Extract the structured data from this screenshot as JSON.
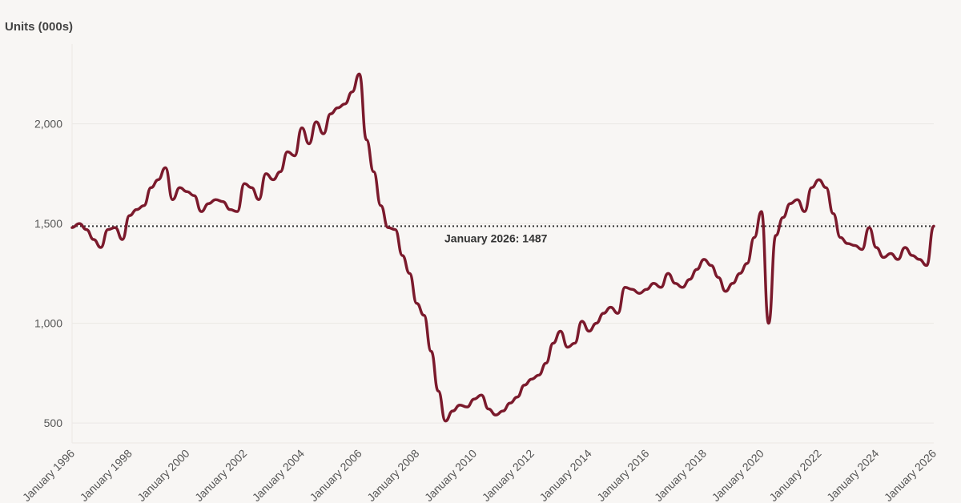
{
  "chart_data": {
    "type": "line",
    "title": "",
    "ylabel": "Units (000s)",
    "xlabel": "",
    "ylim": [
      400,
      2400
    ],
    "yticks": [
      500,
      1000,
      1500,
      2000
    ],
    "ytick_labels": [
      "500",
      "1,000",
      "1,500",
      "2,000"
    ],
    "xlim": [
      "1996-01",
      "2026-01"
    ],
    "xtick_labels": [
      "January 1996",
      "January 1998",
      "January 2000",
      "January 2002",
      "January 2004",
      "January 2006",
      "January 2008",
      "January 2010",
      "January 2012",
      "January 2014",
      "January 2016",
      "January 2018",
      "January 2020",
      "January 2022",
      "January 2024",
      "January 2026"
    ],
    "grid": "horizontal",
    "line_color": "#7b1a2c",
    "reference_line": {
      "value": 1487,
      "style": "dotted",
      "label": "January 2026: 1487"
    },
    "series": [
      {
        "frequency": "quarterly",
        "start": "1996-01",
        "values": [
          1480,
          1500,
          1470,
          1420,
          1380,
          1470,
          1480,
          1420,
          1540,
          1570,
          1590,
          1680,
          1720,
          1780,
          1620,
          1680,
          1660,
          1640,
          1560,
          1600,
          1620,
          1610,
          1570,
          1560,
          1700,
          1680,
          1620,
          1750,
          1720,
          1760,
          1860,
          1840,
          1980,
          1900,
          2010,
          1950,
          2050,
          2080,
          2100,
          2160,
          2250,
          1920,
          1760,
          1590,
          1480,
          1470,
          1340,
          1250,
          1100,
          1040,
          860,
          660,
          510,
          560,
          590,
          580,
          620,
          640,
          570,
          540,
          560,
          600,
          630,
          690,
          720,
          740,
          800,
          900,
          960,
          880,
          900,
          1010,
          960,
          1000,
          1050,
          1080,
          1050,
          1180,
          1170,
          1150,
          1170,
          1200,
          1180,
          1250,
          1200,
          1180,
          1220,
          1270,
          1320,
          1290,
          1230,
          1160,
          1200,
          1250,
          1300,
          1430,
          1560,
          1000,
          1440,
          1530,
          1600,
          1620,
          1560,
          1680,
          1720,
          1680,
          1550,
          1430,
          1400,
          1390,
          1370,
          1480,
          1380,
          1330,
          1350,
          1320,
          1380,
          1340,
          1320,
          1290,
          1487
        ]
      }
    ]
  }
}
